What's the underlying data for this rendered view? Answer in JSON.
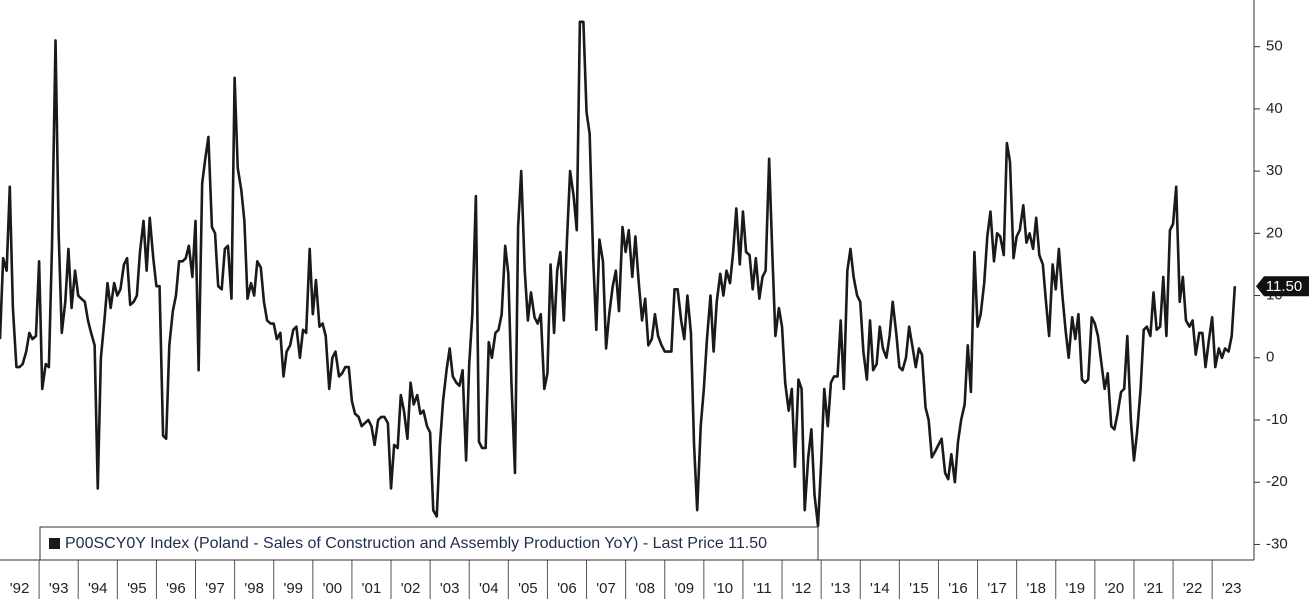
{
  "chart_data": {
    "type": "line",
    "series": [
      {
        "name": "P00SCY0Y Index (Poland - Sales of Construction and Assembly Production YoY) - Last Price 11.50",
        "color": "#1a1a1a",
        "x": [
          1992,
          1992.08,
          1992.17,
          1992.25,
          1992.33,
          1992.42,
          1992.5,
          1992.58,
          1992.67,
          1992.75,
          1992.83,
          1992.92,
          1993,
          1993.08,
          1993.17,
          1993.25,
          1993.33,
          1993.42,
          1993.5,
          1993.58,
          1993.67,
          1993.75,
          1993.83,
          1993.92,
          1994,
          1994.08,
          1994.17,
          1994.25,
          1994.33,
          1994.42,
          1994.5,
          1994.58,
          1994.67,
          1994.75,
          1994.83,
          1994.92,
          1995,
          1995.08,
          1995.17,
          1995.25,
          1995.33,
          1995.42,
          1995.5,
          1995.58,
          1995.67,
          1995.75,
          1995.83,
          1995.92,
          1996,
          1996.08,
          1996.17,
          1996.25,
          1996.33,
          1996.42,
          1996.5,
          1996.58,
          1996.67,
          1996.75,
          1996.83,
          1996.92,
          1997,
          1997.08,
          1997.17,
          1997.25,
          1997.33,
          1997.42,
          1997.5,
          1997.58,
          1997.67,
          1997.75,
          1997.83,
          1997.92,
          1998,
          1998.08,
          1998.17,
          1998.25,
          1998.33,
          1998.42,
          1998.5,
          1998.58,
          1998.67,
          1998.75,
          1998.83,
          1998.92,
          1999,
          1999.08,
          1999.17,
          1999.25,
          1999.33,
          1999.42,
          1999.5,
          1999.58,
          1999.67,
          1999.75,
          1999.83,
          1999.92,
          2000,
          2000.08,
          2000.17,
          2000.25,
          2000.33,
          2000.42,
          2000.5,
          2000.58,
          2000.67,
          2000.75,
          2000.83,
          2000.92,
          2001,
          2001.08,
          2001.17,
          2001.25,
          2001.33,
          2001.42,
          2001.5,
          2001.58,
          2001.67,
          2001.75,
          2001.83,
          2001.92,
          2002,
          2002.08,
          2002.17,
          2002.25,
          2002.33,
          2002.42,
          2002.5,
          2002.58,
          2002.67,
          2002.75,
          2002.83,
          2002.92,
          2003,
          2003.08,
          2003.17,
          2003.25,
          2003.33,
          2003.42,
          2003.5,
          2003.58,
          2003.67,
          2003.75,
          2003.83,
          2003.92,
          2004,
          2004.08,
          2004.17,
          2004.25,
          2004.33,
          2004.42,
          2004.5,
          2004.58,
          2004.67,
          2004.75,
          2004.83,
          2004.92,
          2005,
          2005.08,
          2005.17,
          2005.25,
          2005.33,
          2005.42,
          2005.5,
          2005.58,
          2005.67,
          2005.75,
          2005.83,
          2005.92,
          2006,
          2006.08,
          2006.17,
          2006.25,
          2006.33,
          2006.42,
          2006.5,
          2006.58,
          2006.67,
          2006.75,
          2006.83,
          2006.92,
          2007,
          2007.08,
          2007.17,
          2007.25,
          2007.33,
          2007.42,
          2007.5,
          2007.58,
          2007.67,
          2007.75,
          2007.83,
          2007.92,
          2008,
          2008.08,
          2008.17,
          2008.25,
          2008.33,
          2008.42,
          2008.5,
          2008.58,
          2008.67,
          2008.75,
          2008.83,
          2008.92,
          2009,
          2009.08,
          2009.17,
          2009.25,
          2009.33,
          2009.42,
          2009.5,
          2009.58,
          2009.67,
          2009.75,
          2009.83,
          2009.92,
          2010,
          2010.08,
          2010.17,
          2010.25,
          2010.33,
          2010.42,
          2010.5,
          2010.58,
          2010.67,
          2010.75,
          2010.83,
          2010.92,
          2011,
          2011.08,
          2011.17,
          2011.25,
          2011.33,
          2011.42,
          2011.5,
          2011.58,
          2011.67,
          2011.75,
          2011.83,
          2011.92,
          2012,
          2012.08,
          2012.17,
          2012.25,
          2012.33,
          2012.42,
          2012.5,
          2012.58,
          2012.67,
          2012.75,
          2012.83,
          2012.92,
          2013,
          2013.08,
          2013.17,
          2013.25,
          2013.33,
          2013.42,
          2013.5,
          2013.58,
          2013.67,
          2013.75,
          2013.83,
          2013.92,
          2014,
          2014.08,
          2014.17,
          2014.25,
          2014.33,
          2014.42,
          2014.5,
          2014.58,
          2014.67,
          2014.75,
          2014.83,
          2014.92,
          2015,
          2015.08,
          2015.17,
          2015.25,
          2015.33,
          2015.42,
          2015.5,
          2015.58,
          2015.67,
          2015.75,
          2015.83,
          2015.92,
          2016,
          2016.08,
          2016.17,
          2016.25,
          2016.33,
          2016.42,
          2016.5,
          2016.58,
          2016.67,
          2016.75,
          2016.83,
          2016.92,
          2017,
          2017.08,
          2017.17,
          2017.25,
          2017.33,
          2017.42,
          2017.5,
          2017.58,
          2017.67,
          2017.75,
          2017.83,
          2017.92,
          2018,
          2018.08,
          2018.17,
          2018.25,
          2018.33,
          2018.42,
          2018.5,
          2018.58,
          2018.67,
          2018.75,
          2018.83,
          2018.92,
          2019,
          2019.08,
          2019.17,
          2019.25,
          2019.33,
          2019.42,
          2019.5,
          2019.58,
          2019.67,
          2019.75,
          2019.83,
          2019.92,
          2020,
          2020.08,
          2020.17,
          2020.25,
          2020.33,
          2020.42,
          2020.5,
          2020.58,
          2020.67,
          2020.75,
          2020.83,
          2020.92,
          2021,
          2021.08,
          2021.17,
          2021.25,
          2021.33,
          2021.42,
          2021.5,
          2021.58,
          2021.67,
          2021.75,
          2021.83,
          2021.92,
          2022,
          2022.08,
          2022.17,
          2022.25,
          2022.33,
          2022.42,
          2022.5,
          2022.58,
          2022.67,
          2022.75,
          2022.83,
          2022.92,
          2023,
          2023.08,
          2023.17,
          2023.25,
          2023.33,
          2023.42,
          2023.5,
          2023.58
        ],
        "values": [
          3,
          16,
          14,
          27.5,
          8,
          -1.5,
          -1.5,
          -1,
          1,
          4,
          3,
          3.5,
          15.5,
          -5,
          -1,
          -1.5,
          18,
          51,
          20,
          4,
          9,
          17.5,
          8,
          14,
          10,
          9.5,
          9,
          6,
          4,
          2,
          -21,
          0,
          6,
          12,
          8,
          12,
          10,
          11,
          15,
          16,
          8.5,
          9,
          10,
          17,
          22,
          14,
          22.5,
          16,
          11.5,
          11.5,
          -12.5,
          -13,
          2,
          7.5,
          10,
          15.5,
          15.5,
          16,
          18,
          13,
          22,
          -2,
          28,
          32,
          35.5,
          21,
          20,
          11.5,
          11,
          17.5,
          18,
          9.5,
          45,
          30.5,
          27,
          22,
          9.5,
          12,
          10,
          15.5,
          14.5,
          9,
          6,
          5.5,
          5.5,
          3,
          4,
          -3,
          1,
          2,
          4.5,
          5,
          0,
          4.5,
          4,
          17.5,
          7,
          12.5,
          5,
          5.5,
          3.5,
          -5,
          0,
          1,
          -3,
          -2.5,
          -1.5,
          -1.5,
          -7,
          -9,
          -9.5,
          -11,
          -10.5,
          -10,
          -11,
          -14,
          -10,
          -9.5,
          -9.5,
          -10.5,
          -21,
          -14,
          -14.5,
          -6,
          -8.5,
          -13,
          -4,
          -7.5,
          -6,
          -9,
          -8.5,
          -11,
          -12,
          -24.5,
          -25.5,
          -14,
          -7,
          -2,
          1.5,
          -3,
          -4,
          -4.5,
          -2,
          -16.5,
          -1,
          7,
          26,
          -13.5,
          -14.5,
          -14.5,
          2.5,
          0,
          4,
          4.5,
          7,
          18,
          13.5,
          -4,
          -18.5,
          21,
          30,
          14,
          6,
          10.5,
          6.5,
          5.5,
          7,
          -5,
          -2.5,
          15,
          4,
          14,
          17,
          6,
          19,
          30,
          26,
          20.5,
          54,
          54,
          39.5,
          36,
          16,
          4.5,
          19,
          15.5,
          1.5,
          7,
          11.5,
          14,
          7.5,
          21,
          17,
          20.5,
          13,
          19.5,
          12.5,
          6,
          9.5,
          2,
          3,
          7,
          3.5,
          2,
          1,
          1,
          1,
          11,
          11,
          6,
          3,
          10,
          4,
          -14,
          -24.5,
          -11,
          -5,
          3,
          10,
          1,
          9,
          13.5,
          10,
          14,
          12,
          17,
          24,
          15,
          23.5,
          17,
          16.5,
          11,
          16,
          9.5,
          13,
          14,
          32,
          17,
          3.5,
          8,
          5,
          -4,
          -8.5,
          -5,
          -17.5,
          -3.5,
          -5,
          -24.5,
          -16,
          -11.5,
          -22,
          -27,
          -17,
          -5,
          -11,
          -4,
          -3,
          -3,
          6,
          -5,
          14,
          17.5,
          13,
          10,
          9,
          1,
          -3.5,
          6,
          -2,
          -1,
          5,
          1.5,
          0,
          3.5,
          9,
          4,
          -1.5,
          -2,
          0,
          5,
          2,
          -1.5,
          1.5,
          0.5,
          -8,
          -10,
          -16,
          -15,
          -14,
          -13,
          -18.5,
          -19.5,
          -15.5,
          -20,
          -13.5,
          -10,
          -7.5,
          2,
          -5.5,
          17,
          5,
          7,
          12,
          19.5,
          23.5,
          15.5,
          20,
          19.5,
          16.5,
          34.5,
          31.5,
          16,
          19.5,
          20.5,
          24.5,
          18.5,
          20,
          17.5,
          22.5,
          16.5,
          15,
          9,
          3.5,
          15,
          11,
          17.5,
          10,
          4.5,
          0,
          6.5,
          3,
          7,
          -3.5,
          -4,
          -3.5,
          6.5,
          5.5,
          3.5,
          -1,
          -5,
          -2.5,
          -11,
          -11.5,
          -9,
          -5.5,
          -5,
          3.5,
          -10,
          -16.5,
          -12,
          -5,
          4.5,
          5,
          3.5,
          10.5,
          4.5,
          5,
          13,
          3.5,
          20.5,
          21.5,
          27.5,
          9,
          13,
          6,
          5,
          6,
          0.5,
          4,
          4,
          -1.5,
          3,
          6.5,
          -1.5,
          1.5,
          0,
          1.5,
          1,
          3.5,
          11.5
        ],
        "last_price_label": "11.50"
      }
    ],
    "xlim": [
      1992,
      2024.07
    ],
    "xticks": [
      {
        "value": 1992,
        "label": "'92"
      },
      {
        "value": 1993,
        "label": "'93"
      },
      {
        "value": 1994,
        "label": "'94"
      },
      {
        "value": 1995,
        "label": "'95"
      },
      {
        "value": 1996,
        "label": "'96"
      },
      {
        "value": 1997,
        "label": "'97"
      },
      {
        "value": 1998,
        "label": "'98"
      },
      {
        "value": 1999,
        "label": "'99"
      },
      {
        "value": 2000,
        "label": "'00"
      },
      {
        "value": 2001,
        "label": "'01"
      },
      {
        "value": 2002,
        "label": "'02"
      },
      {
        "value": 2003,
        "label": "'03"
      },
      {
        "value": 2004,
        "label": "'04"
      },
      {
        "value": 2005,
        "label": "'05"
      },
      {
        "value": 2006,
        "label": "'06"
      },
      {
        "value": 2007,
        "label": "'07"
      },
      {
        "value": 2008,
        "label": "'08"
      },
      {
        "value": 2009,
        "label": "'09"
      },
      {
        "value": 2010,
        "label": "'10"
      },
      {
        "value": 2011,
        "label": "'11"
      },
      {
        "value": 2012,
        "label": "'12"
      },
      {
        "value": 2013,
        "label": "'13"
      },
      {
        "value": 2014,
        "label": "'14"
      },
      {
        "value": 2015,
        "label": "'15"
      },
      {
        "value": 2016,
        "label": "'16"
      },
      {
        "value": 2017,
        "label": "'17"
      },
      {
        "value": 2018,
        "label": "'18"
      },
      {
        "value": 2019,
        "label": "'19"
      },
      {
        "value": 2020,
        "label": "'20"
      },
      {
        "value": 2021,
        "label": "'21"
      },
      {
        "value": 2022,
        "label": "'22"
      },
      {
        "value": 2023,
        "label": "'23"
      }
    ],
    "ylim": [
      -32.5,
      57.5
    ],
    "yticks": [
      -30,
      -20,
      -10,
      0,
      10,
      20,
      30,
      40,
      50
    ],
    "legend": "bottom-left"
  }
}
